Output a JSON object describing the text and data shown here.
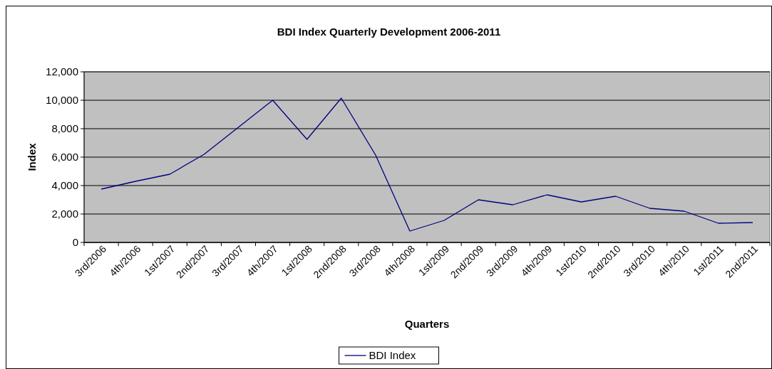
{
  "chart_data": {
    "type": "line",
    "title": "BDI Index Quarterly Development 2006-2011",
    "xlabel": "Quarters",
    "ylabel": "Index",
    "categories": [
      "3rd/2006",
      "4th/2006",
      "1st/2007",
      "2nd/2007",
      "3rd/2007",
      "4th/2007",
      "1st/2008",
      "2nd/2008",
      "3rd/2008",
      "4th/2008",
      "1st/2009",
      "2nd/2009",
      "3rd/2009",
      "4th/2009",
      "1st/2010",
      "2nd/2010",
      "3rd/2010",
      "4th/2010",
      "1st/2011",
      "2nd/2011"
    ],
    "series": [
      {
        "name": "BDI Index",
        "color": "#000080",
        "values": [
          3750,
          4300,
          4800,
          6200,
          8100,
          10000,
          7250,
          10150,
          6150,
          800,
          1550,
          3000,
          2650,
          3350,
          2850,
          3250,
          2400,
          2200,
          1350,
          1400
        ]
      }
    ],
    "ylim": [
      0,
      12000
    ],
    "yticks": [
      {
        "value": 0,
        "label": "0"
      },
      {
        "value": 2000,
        "label": "2,000"
      },
      {
        "value": 4000,
        "label": "4,000"
      },
      {
        "value": 6000,
        "label": "6,000"
      },
      {
        "value": 8000,
        "label": "8,000"
      },
      {
        "value": 10000,
        "label": "10,000"
      },
      {
        "value": 12000,
        "label": "12,000"
      }
    ],
    "grid": "y",
    "legend": "bottom",
    "marker": "none",
    "line_style": "solid"
  }
}
